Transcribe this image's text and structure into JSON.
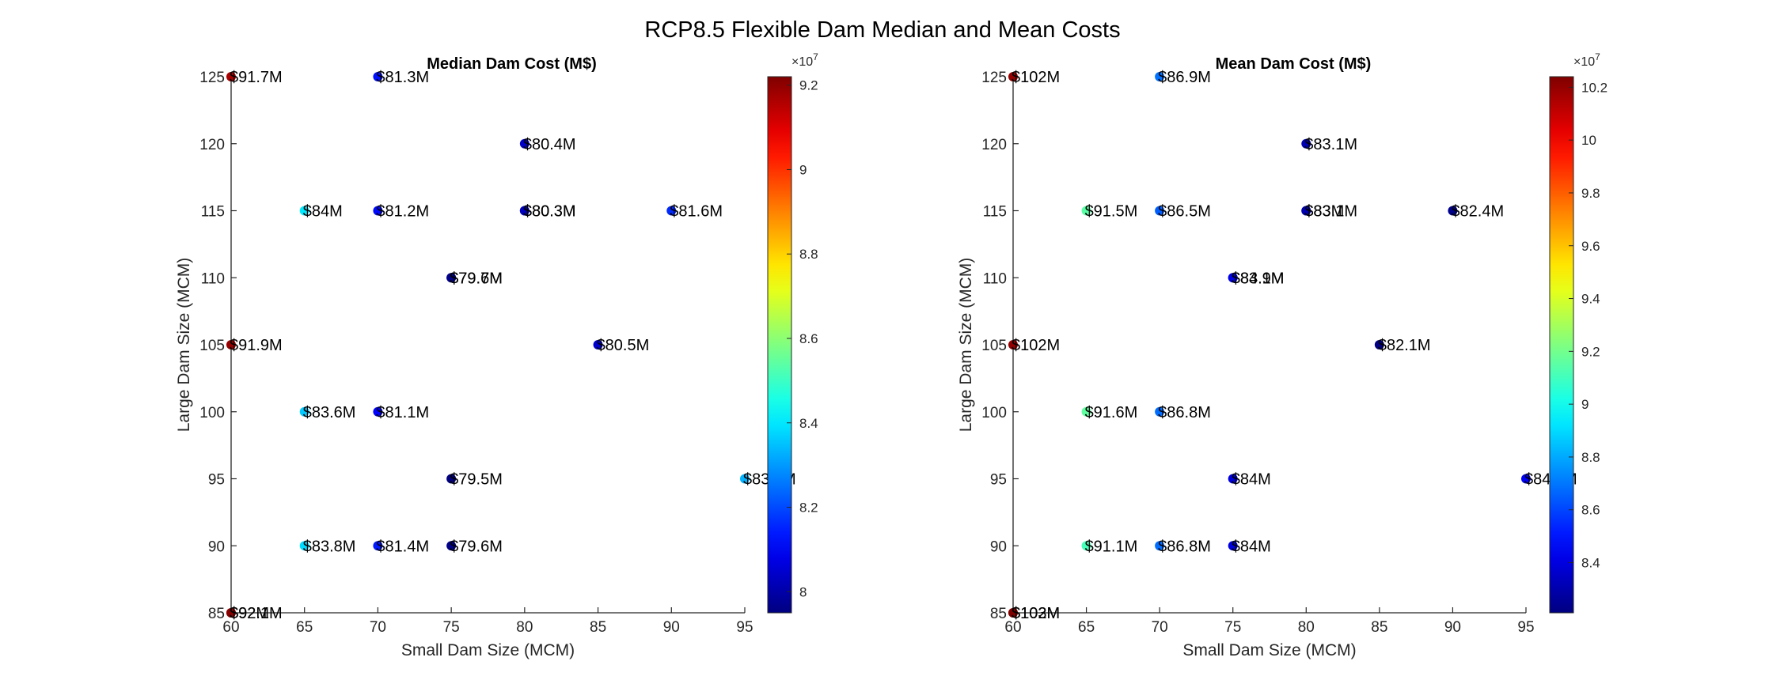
{
  "figure": {
    "title": "RCP8.5 Flexible Dam Median and Mean Costs"
  },
  "chart_data": [
    {
      "type": "scatter",
      "title": "Median Dam Cost (M$)",
      "xlabel": "Small Dam Size (MCM)",
      "ylabel": "Large Dam Size (MCM)",
      "xlim": [
        60,
        95
      ],
      "ylim": [
        85,
        125
      ],
      "xticks": [
        "60",
        "65",
        "70",
        "75",
        "80",
        "85",
        "90",
        "95"
      ],
      "yticks": [
        "85",
        "90",
        "95",
        "100",
        "105",
        "110",
        "115",
        "120",
        "125"
      ],
      "grid": false,
      "colorbar": {
        "colormap": "jet",
        "range": [
          79500000.0,
          92200000.0
        ],
        "exponent_label": "×10",
        "exponent_value": "7",
        "ticks": [
          "8",
          "8.2",
          "8.4",
          "8.6",
          "8.8",
          "9",
          "9.2"
        ]
      },
      "points": [
        {
          "x": 60,
          "y": 125,
          "value": 91700000.0,
          "label": "$91.7M"
        },
        {
          "x": 70,
          "y": 125,
          "value": 81300000.0,
          "label": "$81.3M"
        },
        {
          "x": 80,
          "y": 120,
          "value": 80400000.0,
          "label": "$80.4M"
        },
        {
          "x": 65,
          "y": 115,
          "value": 84000000.0,
          "label": "$84M"
        },
        {
          "x": 70,
          "y": 115,
          "value": 81200000.0,
          "label": "$81.2M"
        },
        {
          "x": 80,
          "y": 115,
          "value": 80300000.0,
          "label": "$80.3M"
        },
        {
          "x": 80,
          "y": 115,
          "value": 80300000.0,
          "label": "$80.3M"
        },
        {
          "x": 90,
          "y": 115,
          "value": 81600000.0,
          "label": "$81.6M"
        },
        {
          "x": 75,
          "y": 110,
          "value": 79700000.0,
          "label": "$79.7M"
        },
        {
          "x": 75,
          "y": 110,
          "value": 79600000.0,
          "label": "$79.6M"
        },
        {
          "x": 60,
          "y": 105,
          "value": 91900000.0,
          "label": "$91.9M"
        },
        {
          "x": 85,
          "y": 105,
          "value": 80500000.0,
          "label": "$80.5M"
        },
        {
          "x": 65,
          "y": 100,
          "value": 83600000.0,
          "label": "$83.6M"
        },
        {
          "x": 70,
          "y": 100,
          "value": 81100000.0,
          "label": "$81.1M"
        },
        {
          "x": 75,
          "y": 95,
          "value": 79500000.0,
          "label": "$79.5M"
        },
        {
          "x": 95,
          "y": 95,
          "value": 83300000.0,
          "label": "$83.3M"
        },
        {
          "x": 65,
          "y": 90,
          "value": 83800000.0,
          "label": "$83.8M"
        },
        {
          "x": 70,
          "y": 90,
          "value": 81400000.0,
          "label": "$81.4M"
        },
        {
          "x": 75,
          "y": 90,
          "value": 79600000.0,
          "label": "$79.6M"
        },
        {
          "x": 60,
          "y": 85,
          "value": 92000000.0,
          "label": "$92M"
        },
        {
          "x": 60,
          "y": 85,
          "value": 92100000.0,
          "label": "$92.1M"
        }
      ]
    },
    {
      "type": "scatter",
      "title": "Mean Dam Cost (M$)",
      "xlabel": "Small Dam Size (MCM)",
      "ylabel": "Large Dam Size (MCM)",
      "xlim": [
        60,
        95
      ],
      "ylim": [
        85,
        125
      ],
      "xticks": [
        "60",
        "65",
        "70",
        "75",
        "80",
        "85",
        "90",
        "95"
      ],
      "yticks": [
        "85",
        "90",
        "95",
        "100",
        "105",
        "110",
        "115",
        "120",
        "125"
      ],
      "grid": false,
      "colorbar": {
        "colormap": "jet",
        "range": [
          82100000.0,
          102400000.0
        ],
        "exponent_label": "×10",
        "exponent_value": "7",
        "ticks": [
          "8.4",
          "8.6",
          "8.8",
          "9",
          "9.2",
          "9.4",
          "9.6",
          "9.8",
          "10",
          "10.2"
        ]
      },
      "points": [
        {
          "x": 60,
          "y": 125,
          "value": 102000000.0,
          "label": "$102M"
        },
        {
          "x": 70,
          "y": 125,
          "value": 86900000.0,
          "label": "$86.9M"
        },
        {
          "x": 80,
          "y": 120,
          "value": 83100000.0,
          "label": "$83.1M"
        },
        {
          "x": 65,
          "y": 115,
          "value": 91500000.0,
          "label": "$91.5M"
        },
        {
          "x": 70,
          "y": 115,
          "value": 86500000.0,
          "label": "$86.5M"
        },
        {
          "x": 80,
          "y": 115,
          "value": 83000000.0,
          "label": "$83M"
        },
        {
          "x": 80,
          "y": 115,
          "value": 83100000.0,
          "label": "$83.1M"
        },
        {
          "x": 90,
          "y": 115,
          "value": 82400000.0,
          "label": "$82.4M"
        },
        {
          "x": 75,
          "y": 110,
          "value": 83900000.0,
          "label": "$83.9M"
        },
        {
          "x": 75,
          "y": 110,
          "value": 84100000.0,
          "label": "$84.1M"
        },
        {
          "x": 60,
          "y": 105,
          "value": 102000000.0,
          "label": "$102M"
        },
        {
          "x": 85,
          "y": 105,
          "value": 82100000.0,
          "label": "$82.1M"
        },
        {
          "x": 65,
          "y": 100,
          "value": 91600000.0,
          "label": "$91.6M"
        },
        {
          "x": 70,
          "y": 100,
          "value": 86800000.0,
          "label": "$86.8M"
        },
        {
          "x": 75,
          "y": 95,
          "value": 84000000.0,
          "label": "$84M"
        },
        {
          "x": 95,
          "y": 95,
          "value": 84500000.0,
          "label": "$84.5M"
        },
        {
          "x": 65,
          "y": 90,
          "value": 91100000.0,
          "label": "$91.1M"
        },
        {
          "x": 70,
          "y": 90,
          "value": 86800000.0,
          "label": "$86.8M"
        },
        {
          "x": 75,
          "y": 90,
          "value": 84000000.0,
          "label": "$84M"
        },
        {
          "x": 60,
          "y": 85,
          "value": 102000000.0,
          "label": "$102M"
        },
        {
          "x": 60,
          "y": 85,
          "value": 103000000.0,
          "label": "$103M"
        }
      ]
    }
  ]
}
